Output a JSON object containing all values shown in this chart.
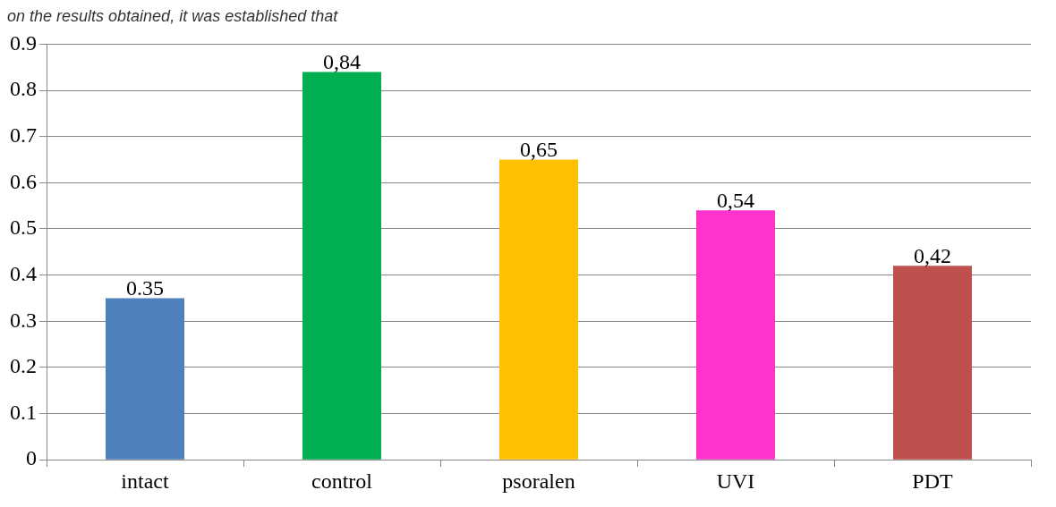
{
  "chart_data": {
    "type": "bar",
    "annotations": [
      "on the results obtained, it was established that"
    ],
    "categories": [
      "intact",
      "control",
      "psoralen",
      "UVI",
      "PDT"
    ],
    "values": [
      0.35,
      0.84,
      0.65,
      0.54,
      0.42
    ],
    "colors": [
      "#4f81bd",
      "#00b050",
      "#ffc000",
      "#ff33cc",
      "#c0504d"
    ],
    "value_labels": [
      "0.35",
      "0,84",
      "0,65",
      "0,54",
      "0,42"
    ],
    "ylim": [
      0,
      0.9
    ],
    "yticks": [
      0,
      0.1,
      0.2,
      0.3,
      0.4,
      0.5,
      0.6,
      0.7,
      0.8,
      0.9
    ],
    "grid": "y",
    "legend": false
  }
}
